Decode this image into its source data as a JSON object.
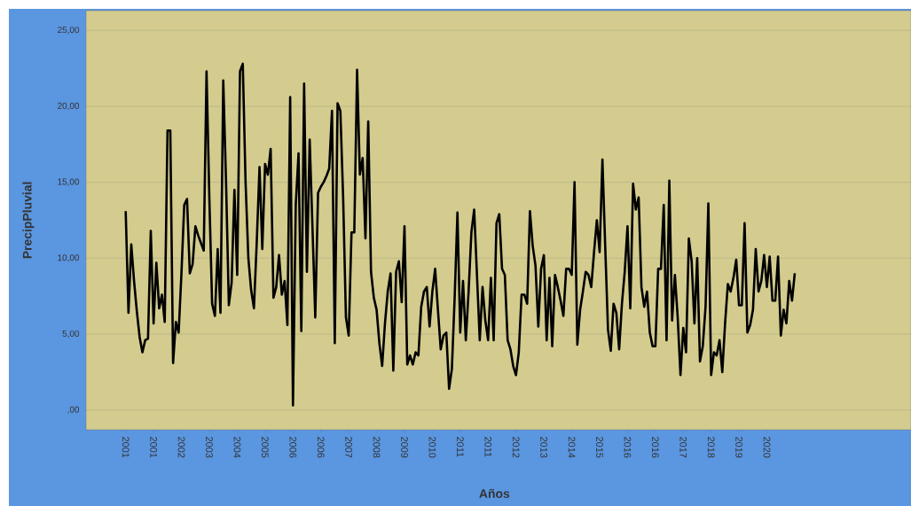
{
  "chart_data": {
    "type": "line",
    "xlabel": "Años",
    "ylabel": "PrecipPluvial",
    "categories": [
      "2001",
      null,
      null,
      null,
      null,
      null,
      null,
      null,
      null,
      null,
      "2001",
      null,
      null,
      null,
      null,
      null,
      null,
      null,
      null,
      null,
      "2002",
      null,
      null,
      null,
      null,
      null,
      null,
      null,
      null,
      null,
      "2003",
      null,
      null,
      null,
      null,
      null,
      null,
      null,
      null,
      null,
      "2004",
      null,
      null,
      null,
      null,
      null,
      null,
      null,
      null,
      null,
      "2005",
      null,
      null,
      null,
      null,
      null,
      null,
      null,
      null,
      null,
      "2006",
      null,
      null,
      null,
      null,
      null,
      null,
      null,
      null,
      null,
      "2006",
      null,
      null,
      null,
      null,
      null,
      null,
      null,
      null,
      null,
      "2007",
      null,
      null,
      null,
      null,
      null,
      null,
      null,
      null,
      null,
      "2008",
      null,
      null,
      null,
      null,
      null,
      null,
      null,
      null,
      null,
      "2009",
      null,
      null,
      null,
      null,
      null,
      null,
      null,
      null,
      null,
      "2010",
      null,
      null,
      null,
      null,
      null,
      null,
      null,
      null,
      null,
      "2011",
      null,
      null,
      null,
      null,
      null,
      null,
      null,
      null,
      null,
      "2011",
      null,
      null,
      null,
      null,
      null,
      null,
      null,
      null,
      null,
      "2012",
      null,
      null,
      null,
      null,
      null,
      null,
      null,
      null,
      null,
      "2013",
      null,
      null,
      null,
      null,
      null,
      null,
      null,
      null,
      null,
      "2014",
      null,
      null,
      null,
      null,
      null,
      null,
      null,
      null,
      null,
      "2015",
      null,
      null,
      null,
      null,
      null,
      null,
      null,
      null,
      null,
      "2016",
      null,
      null,
      null,
      null,
      null,
      null,
      null,
      null,
      null,
      "2016",
      null,
      null,
      null,
      null,
      null,
      null,
      null,
      null,
      null,
      "2017",
      null,
      null,
      null,
      null,
      null,
      null,
      null,
      null,
      null,
      "2018",
      null,
      null,
      null,
      null,
      null,
      null,
      null,
      null,
      null,
      "2019",
      null,
      null,
      null,
      null,
      null,
      null,
      null,
      null,
      null,
      "2020",
      null,
      null,
      null,
      null,
      null,
      null,
      null,
      null,
      null,
      null
    ],
    "values": [
      13.1,
      6.4,
      10.9,
      8.5,
      6.5,
      4.8,
      3.8,
      4.6,
      4.7,
      11.8,
      5.7,
      9.7,
      6.7,
      7.6,
      5.8,
      18.4,
      18.4,
      3.1,
      5.8,
      5.1,
      9.0,
      13.5,
      13.9,
      9.0,
      9.6,
      12.1,
      11.5,
      11.0,
      10.5,
      22.3,
      14.0,
      7.0,
      6.2,
      10.6,
      6.4,
      21.7,
      15.0,
      6.9,
      8.4,
      14.5,
      8.9,
      22.3,
      22.8,
      15.0,
      10.0,
      7.9,
      6.7,
      11.0,
      16.0,
      10.6,
      16.2,
      15.5,
      17.2,
      7.4,
      8.1,
      10.2,
      7.6,
      8.5,
      5.6,
      20.6,
      0.3,
      13.5,
      16.9,
      5.2,
      21.5,
      9.1,
      17.8,
      12.0,
      6.1,
      14.3,
      14.7,
      15.0,
      15.4,
      15.9,
      19.7,
      4.4,
      20.2,
      19.7,
      14.0,
      6.1,
      4.9,
      11.7,
      11.7,
      22.4,
      15.5,
      16.6,
      11.3,
      19.0,
      9.1,
      7.4,
      6.6,
      4.4,
      2.9,
      5.7,
      7.8,
      9.0,
      2.6,
      9.1,
      9.8,
      7.1,
      12.1,
      3.0,
      3.6,
      3.0,
      3.8,
      3.6,
      6.8,
      7.8,
      8.1,
      5.5,
      7.8,
      9.3,
      6.6,
      4.0,
      4.9,
      5.1,
      1.4,
      2.7,
      7.4,
      13.0,
      5.1,
      8.5,
      4.6,
      7.8,
      11.7,
      13.2,
      8.9,
      4.6,
      8.1,
      5.9,
      4.6,
      8.7,
      4.6,
      12.3,
      12.9,
      9.3,
      8.9,
      4.6,
      4.0,
      2.9,
      2.3,
      3.8,
      7.6,
      7.6,
      7.0,
      13.1,
      10.8,
      9.5,
      5.5,
      9.3,
      10.2,
      4.6,
      8.7,
      4.2,
      8.9,
      8.1,
      7.2,
      6.2,
      9.3,
      9.3,
      8.9,
      15.0,
      4.3,
      6.6,
      7.8,
      9.1,
      8.9,
      8.1,
      10.4,
      12.5,
      10.4,
      16.5,
      10.8,
      5.3,
      3.9,
      7.0,
      6.4,
      4.0,
      7.0,
      9.1,
      12.1,
      6.7,
      14.9,
      13.2,
      14.0,
      8.1,
      6.8,
      7.8,
      5.1,
      4.2,
      4.2,
      9.3,
      9.3,
      13.5,
      4.6,
      15.1,
      5.9,
      8.9,
      6.1,
      2.3,
      5.4,
      3.8,
      11.3,
      9.8,
      5.7,
      10.0,
      3.2,
      4.2,
      6.8,
      13.6,
      2.3,
      3.8,
      3.6,
      4.6,
      2.5,
      5.7,
      8.3,
      7.8,
      8.7,
      9.9,
      6.9,
      6.9,
      12.3,
      5.1,
      5.6,
      6.6,
      10.6,
      7.8,
      8.5,
      10.2,
      8.1,
      10.1,
      7.2,
      7.2,
      10.1,
      4.9,
      6.6,
      5.7,
      8.5,
      7.2,
      9.0
    ],
    "color": "#000000",
    "ylim": [
      -1.3,
      26.3
    ],
    "yticks": [
      {
        "value": 0,
        "label": ",00"
      },
      {
        "value": 5,
        "label": "5,00"
      },
      {
        "value": 10,
        "label": "10,00"
      },
      {
        "value": 15,
        "label": "15,00"
      },
      {
        "value": 20,
        "label": "20,00"
      },
      {
        "value": 25,
        "label": "25,00"
      }
    ],
    "grid": "y",
    "line_style": "solid"
  }
}
